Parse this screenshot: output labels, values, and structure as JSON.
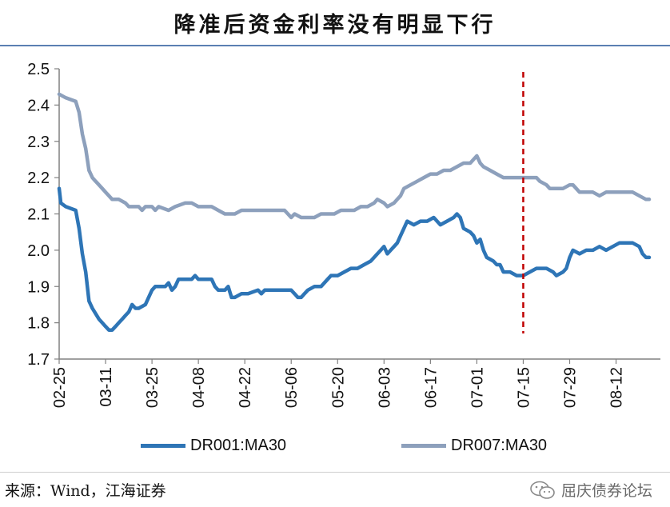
{
  "title": "降准后资金利率没有明显下行",
  "source": "来源：Wind，江海证券",
  "watermark": "屈庆债券论坛",
  "chart_data": {
    "type": "line",
    "title": "降准后资金利率没有明显下行",
    "xlabel": "",
    "ylabel": "",
    "ylim": [
      1.7,
      2.5
    ],
    "yticks": [
      "1.7",
      "1.8",
      "1.9",
      "2.0",
      "2.1",
      "2.2",
      "2.3",
      "2.4",
      "2.5"
    ],
    "x_tick_labels": [
      "02-25",
      "03-11",
      "03-25",
      "04-08",
      "04-22",
      "05-06",
      "05-20",
      "06-03",
      "06-17",
      "07-01",
      "07-15",
      "07-29",
      "08-12"
    ],
    "x_tick_offsets": [
      0,
      14,
      28,
      42,
      56,
      70,
      84,
      98,
      112,
      126,
      140,
      154,
      168
    ],
    "x_max": 178,
    "vline_x": 140,
    "vline_color": "#c00000",
    "legend_position": "bottom",
    "grid": false,
    "series": [
      {
        "name": "DR001:MA30",
        "color": "#2e75b6",
        "points": [
          [
            0,
            2.17
          ],
          [
            0.5,
            2.13
          ],
          [
            2,
            2.12
          ],
          [
            5,
            2.11
          ],
          [
            6,
            2.06
          ],
          [
            7,
            1.99
          ],
          [
            8,
            1.94
          ],
          [
            9,
            1.86
          ],
          [
            10,
            1.84
          ],
          [
            12,
            1.81
          ],
          [
            13,
            1.8
          ],
          [
            14,
            1.79
          ],
          [
            15,
            1.78
          ],
          [
            16,
            1.78
          ],
          [
            17,
            1.79
          ],
          [
            18,
            1.8
          ],
          [
            19,
            1.81
          ],
          [
            20,
            1.82
          ],
          [
            21,
            1.83
          ],
          [
            22,
            1.85
          ],
          [
            23,
            1.84
          ],
          [
            24,
            1.84
          ],
          [
            26,
            1.85
          ],
          [
            27,
            1.87
          ],
          [
            28,
            1.89
          ],
          [
            29,
            1.9
          ],
          [
            30,
            1.9
          ],
          [
            32,
            1.9
          ],
          [
            33,
            1.91
          ],
          [
            34,
            1.89
          ],
          [
            35,
            1.9
          ],
          [
            36,
            1.92
          ],
          [
            38,
            1.92
          ],
          [
            40,
            1.92
          ],
          [
            41,
            1.93
          ],
          [
            42,
            1.92
          ],
          [
            44,
            1.92
          ],
          [
            46,
            1.92
          ],
          [
            47,
            1.9
          ],
          [
            48,
            1.89
          ],
          [
            50,
            1.89
          ],
          [
            51,
            1.9
          ],
          [
            52,
            1.87
          ],
          [
            53,
            1.87
          ],
          [
            55,
            1.88
          ],
          [
            57,
            1.88
          ],
          [
            60,
            1.89
          ],
          [
            61,
            1.88
          ],
          [
            62,
            1.89
          ],
          [
            65,
            1.89
          ],
          [
            68,
            1.89
          ],
          [
            70,
            1.89
          ],
          [
            71,
            1.88
          ],
          [
            72,
            1.87
          ],
          [
            73,
            1.87
          ],
          [
            74,
            1.88
          ],
          [
            75,
            1.89
          ],
          [
            77,
            1.9
          ],
          [
            79,
            1.9
          ],
          [
            80,
            1.91
          ],
          [
            81,
            1.92
          ],
          [
            82,
            1.93
          ],
          [
            84,
            1.93
          ],
          [
            86,
            1.94
          ],
          [
            88,
            1.95
          ],
          [
            90,
            1.95
          ],
          [
            92,
            1.96
          ],
          [
            94,
            1.97
          ],
          [
            96,
            1.99
          ],
          [
            97,
            2.0
          ],
          [
            98,
            2.01
          ],
          [
            99,
            1.99
          ],
          [
            100,
            2.0
          ],
          [
            101,
            2.01
          ],
          [
            102,
            2.02
          ],
          [
            103,
            2.04
          ],
          [
            104,
            2.06
          ],
          [
            105,
            2.08
          ],
          [
            107,
            2.07
          ],
          [
            109,
            2.08
          ],
          [
            111,
            2.08
          ],
          [
            113,
            2.09
          ],
          [
            114,
            2.08
          ],
          [
            115,
            2.07
          ],
          [
            117,
            2.08
          ],
          [
            119,
            2.09
          ],
          [
            120,
            2.1
          ],
          [
            121,
            2.09
          ],
          [
            122,
            2.06
          ],
          [
            124,
            2.05
          ],
          [
            125,
            2.04
          ],
          [
            126,
            2.02
          ],
          [
            127,
            2.03
          ],
          [
            128,
            2.0
          ],
          [
            129,
            1.98
          ],
          [
            131,
            1.97
          ],
          [
            132,
            1.96
          ],
          [
            133,
            1.96
          ],
          [
            134,
            1.94
          ],
          [
            136,
            1.94
          ],
          [
            138,
            1.93
          ],
          [
            140,
            1.93
          ],
          [
            142,
            1.94
          ],
          [
            144,
            1.95
          ],
          [
            145,
            1.95
          ],
          [
            146,
            1.95
          ],
          [
            147,
            1.95
          ],
          [
            149,
            1.94
          ],
          [
            150,
            1.93
          ],
          [
            152,
            1.94
          ],
          [
            153,
            1.95
          ],
          [
            154,
            1.98
          ],
          [
            155,
            2.0
          ],
          [
            157,
            1.99
          ],
          [
            159,
            2.0
          ],
          [
            161,
            2.0
          ],
          [
            163,
            2.01
          ],
          [
            165,
            2.0
          ],
          [
            167,
            2.01
          ],
          [
            169,
            2.02
          ],
          [
            171,
            2.02
          ],
          [
            173,
            2.02
          ],
          [
            175,
            2.01
          ],
          [
            176,
            1.99
          ],
          [
            177,
            1.98
          ],
          [
            178,
            1.98
          ]
        ]
      },
      {
        "name": "DR007:MA30",
        "color": "#8da0bc",
        "points": [
          [
            0,
            2.43
          ],
          [
            2,
            2.42
          ],
          [
            5,
            2.41
          ],
          [
            6,
            2.38
          ],
          [
            7,
            2.32
          ],
          [
            8,
            2.28
          ],
          [
            9,
            2.22
          ],
          [
            10,
            2.2
          ],
          [
            11,
            2.19
          ],
          [
            12,
            2.18
          ],
          [
            13,
            2.17
          ],
          [
            14,
            2.16
          ],
          [
            15,
            2.15
          ],
          [
            16,
            2.14
          ],
          [
            18,
            2.14
          ],
          [
            20,
            2.13
          ],
          [
            21,
            2.12
          ],
          [
            24,
            2.12
          ],
          [
            25,
            2.11
          ],
          [
            26,
            2.12
          ],
          [
            28,
            2.12
          ],
          [
            29,
            2.11
          ],
          [
            30,
            2.12
          ],
          [
            33,
            2.11
          ],
          [
            35,
            2.12
          ],
          [
            38,
            2.13
          ],
          [
            40,
            2.13
          ],
          [
            42,
            2.12
          ],
          [
            46,
            2.12
          ],
          [
            48,
            2.11
          ],
          [
            50,
            2.1
          ],
          [
            53,
            2.1
          ],
          [
            55,
            2.11
          ],
          [
            58,
            2.11
          ],
          [
            60,
            2.11
          ],
          [
            62,
            2.11
          ],
          [
            64,
            2.11
          ],
          [
            67,
            2.11
          ],
          [
            68,
            2.11
          ],
          [
            69,
            2.1
          ],
          [
            70,
            2.09
          ],
          [
            71,
            2.1
          ],
          [
            73,
            2.09
          ],
          [
            75,
            2.09
          ],
          [
            77,
            2.09
          ],
          [
            79,
            2.1
          ],
          [
            81,
            2.1
          ],
          [
            83,
            2.1
          ],
          [
            85,
            2.11
          ],
          [
            87,
            2.11
          ],
          [
            89,
            2.11
          ],
          [
            91,
            2.12
          ],
          [
            93,
            2.12
          ],
          [
            95,
            2.13
          ],
          [
            96,
            2.14
          ],
          [
            98,
            2.13
          ],
          [
            99,
            2.12
          ],
          [
            101,
            2.13
          ],
          [
            102,
            2.14
          ],
          [
            103,
            2.15
          ],
          [
            104,
            2.17
          ],
          [
            106,
            2.18
          ],
          [
            108,
            2.19
          ],
          [
            110,
            2.2
          ],
          [
            112,
            2.21
          ],
          [
            114,
            2.21
          ],
          [
            116,
            2.22
          ],
          [
            118,
            2.22
          ],
          [
            120,
            2.23
          ],
          [
            122,
            2.24
          ],
          [
            124,
            2.24
          ],
          [
            125,
            2.25
          ],
          [
            126,
            2.26
          ],
          [
            127,
            2.24
          ],
          [
            128,
            2.23
          ],
          [
            130,
            2.22
          ],
          [
            132,
            2.21
          ],
          [
            134,
            2.2
          ],
          [
            136,
            2.2
          ],
          [
            138,
            2.2
          ],
          [
            140,
            2.2
          ],
          [
            142,
            2.2
          ],
          [
            144,
            2.2
          ],
          [
            145,
            2.19
          ],
          [
            147,
            2.18
          ],
          [
            148,
            2.17
          ],
          [
            150,
            2.17
          ],
          [
            152,
            2.17
          ],
          [
            154,
            2.18
          ],
          [
            155,
            2.18
          ],
          [
            157,
            2.16
          ],
          [
            159,
            2.16
          ],
          [
            161,
            2.16
          ],
          [
            163,
            2.15
          ],
          [
            165,
            2.16
          ],
          [
            167,
            2.16
          ],
          [
            169,
            2.16
          ],
          [
            171,
            2.16
          ],
          [
            173,
            2.16
          ],
          [
            175,
            2.15
          ],
          [
            177,
            2.14
          ],
          [
            178,
            2.14
          ]
        ]
      }
    ]
  }
}
